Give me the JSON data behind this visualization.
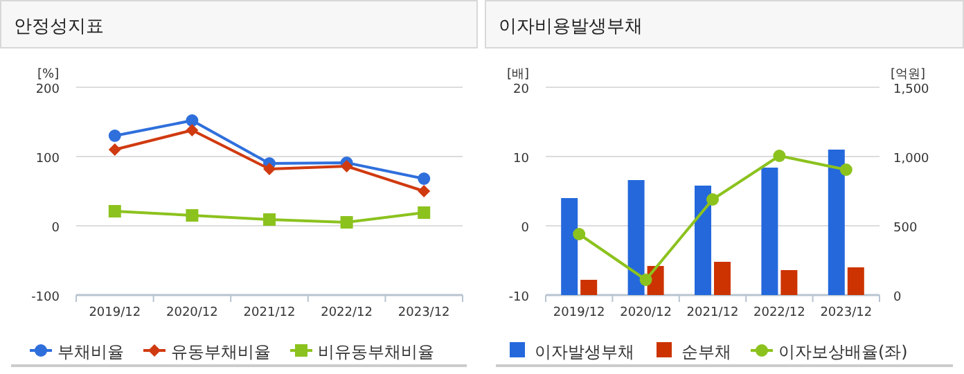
{
  "chart_data": [
    {
      "type": "line",
      "title": "안정성지표",
      "ylabel": "[%]",
      "categories": [
        "2019/12",
        "2020/12",
        "2021/12",
        "2022/12",
        "2023/12"
      ],
      "ylim": [
        -100,
        200
      ],
      "yticks": [
        -100,
        0,
        100,
        200
      ],
      "grid": "y",
      "legend": "bottom",
      "series": [
        {
          "name": "부채비율",
          "color": "#2f6fdc",
          "marker": "circle",
          "values": [
            130,
            152,
            90,
            91,
            68
          ]
        },
        {
          "name": "유동부채비율",
          "color": "#d03a10",
          "marker": "diamond",
          "values": [
            110,
            138,
            82,
            86,
            50
          ]
        },
        {
          "name": "비유동부채비율",
          "color": "#8cc21e",
          "marker": "square",
          "values": [
            21,
            15,
            9,
            5,
            19
          ]
        }
      ]
    },
    {
      "type": "bar",
      "title": "이자비용발생부채",
      "ylabel": "[배]",
      "y2label": "[억원]",
      "categories": [
        "2019/12",
        "2020/12",
        "2021/12",
        "2022/12",
        "2023/12"
      ],
      "ylim": [
        -10,
        20
      ],
      "yticks": [
        -10,
        0,
        10,
        20
      ],
      "y2lim": [
        0,
        1500
      ],
      "y2ticks": [
        0,
        500,
        {
          "value": 1000,
          "label": "1,000"
        },
        {
          "value": 1500,
          "label": "1,500"
        }
      ],
      "grid": "y",
      "legend": "bottom",
      "series": [
        {
          "name": "이자발생부채",
          "color": "#2468dc",
          "axis": "y2",
          "values": [
            700,
            830,
            790,
            920,
            1050
          ]
        },
        {
          "name": "순부채",
          "color": "#cc3300",
          "axis": "y2",
          "values": [
            110,
            210,
            240,
            180,
            200
          ]
        },
        {
          "name": "이자보상배율(좌)",
          "color": "#8cc21e",
          "type": "line",
          "marker": "circle",
          "axis": "y",
          "values": [
            -1.2,
            -7.8,
            3.8,
            10.1,
            8.1
          ]
        }
      ]
    }
  ]
}
